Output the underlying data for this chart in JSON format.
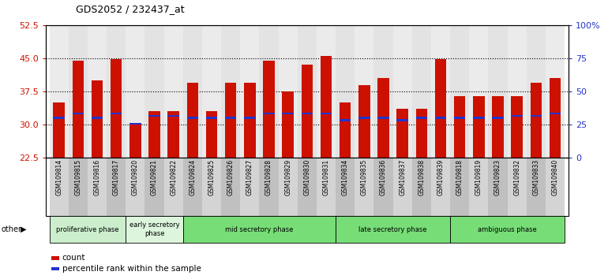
{
  "title": "GDS2052 / 232437_at",
  "samples": [
    "GSM109814",
    "GSM109815",
    "GSM109816",
    "GSM109817",
    "GSM109820",
    "GSM109821",
    "GSM109822",
    "GSM109824",
    "GSM109825",
    "GSM109826",
    "GSM109827",
    "GSM109828",
    "GSM109829",
    "GSM109830",
    "GSM109831",
    "GSM109834",
    "GSM109835",
    "GSM109836",
    "GSM109837",
    "GSM109838",
    "GSM109839",
    "GSM109818",
    "GSM109819",
    "GSM109823",
    "GSM109832",
    "GSM109833",
    "GSM109840"
  ],
  "count_values": [
    35.0,
    44.5,
    40.0,
    44.8,
    30.2,
    33.0,
    33.0,
    39.5,
    33.0,
    39.5,
    39.5,
    44.5,
    37.5,
    43.5,
    45.5,
    35.0,
    39.0,
    40.5,
    33.5,
    33.5,
    44.8,
    36.5,
    36.5,
    36.5,
    36.5,
    39.5,
    40.5
  ],
  "percentile_values": [
    31.5,
    32.5,
    31.5,
    32.5,
    30.2,
    32.0,
    32.0,
    31.5,
    31.5,
    31.5,
    31.5,
    32.5,
    32.5,
    32.5,
    32.5,
    31.0,
    31.5,
    31.5,
    31.0,
    31.5,
    31.5,
    31.5,
    31.5,
    31.5,
    32.0,
    32.0,
    32.5
  ],
  "y_left_min": 22.5,
  "y_left_max": 52.5,
  "y_right_min": 0,
  "y_right_max": 100,
  "y_left_ticks": [
    22.5,
    30.0,
    37.5,
    45.0,
    52.5
  ],
  "y_right_ticks": [
    0,
    25,
    50,
    75,
    100
  ],
  "bar_color": "#CC1100",
  "percentile_color": "#2233CC",
  "bar_width": 0.6,
  "phase_groups": [
    {
      "label": "proliferative phase",
      "start": 0,
      "end": 4,
      "color": "#cceecc"
    },
    {
      "label": "early secretory\nphase",
      "start": 4,
      "end": 7,
      "color": "#ddf5dd"
    },
    {
      "label": "mid secretory phase",
      "start": 7,
      "end": 15,
      "color": "#77dd77"
    },
    {
      "label": "late secretory phase",
      "start": 15,
      "end": 21,
      "color": "#77dd77"
    },
    {
      "label": "ambiguous phase",
      "start": 21,
      "end": 27,
      "color": "#77dd77"
    }
  ],
  "other_label": "other",
  "legend_count_label": "count",
  "legend_percentile_label": "percentile rank within the sample",
  "left_axis_color": "#CC1100",
  "right_axis_color": "#2233CC",
  "tick_bg_color": "#cccccc",
  "xlim_left": -0.7,
  "xlim_right": 26.7
}
